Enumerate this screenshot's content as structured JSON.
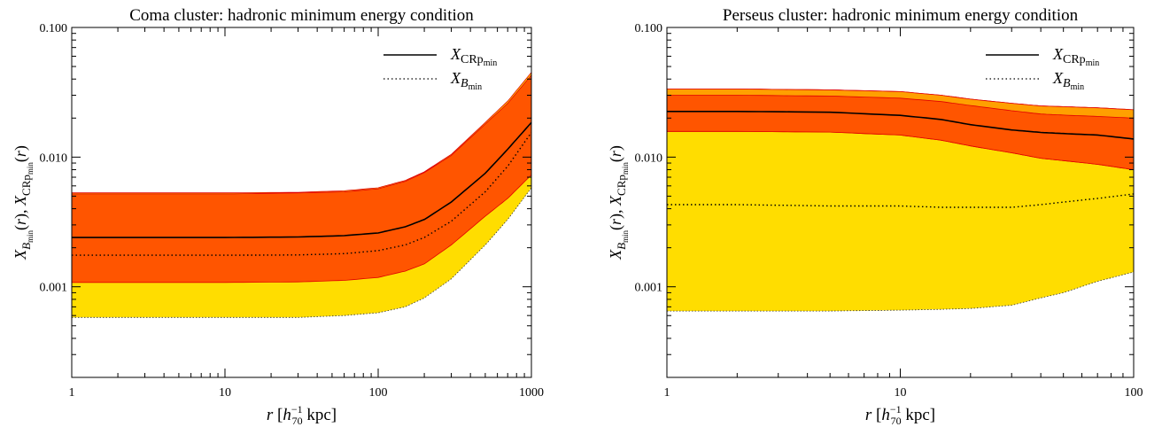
{
  "chart_data": [
    {
      "type": "area",
      "title": "Coma cluster: hadronic minimum energy condition",
      "xlabel": {
        "pre": "r [h",
        "sub": "70",
        "sup": "−1",
        "post": " kpc]"
      },
      "ylabel": "X_Bmin(r), X_CRpmin(r)",
      "xscale": "log",
      "yscale": "log",
      "xlim": [
        1,
        1000
      ],
      "ylim": [
        0.0002,
        0.1
      ],
      "x_ticks": [
        "1",
        "10",
        "100",
        "1000"
      ],
      "y_ticks": [
        "0.001",
        "0.010",
        "0.100"
      ],
      "legend": {
        "position": "top-right",
        "entries": [
          {
            "base": "X",
            "sub": "CRp",
            "subsub": "min",
            "style": "solid"
          },
          {
            "base": "X",
            "sub": "B",
            "subsub": "min",
            "style": "dotted"
          }
        ]
      },
      "colors": {
        "outer_band": "#ffdd00",
        "inner_band": "#ff5500",
        "band_edge": "#e00000",
        "line": "#000000"
      },
      "x": [
        1,
        3,
        10,
        30,
        60,
        100,
        150,
        200,
        300,
        500,
        700,
        1000
      ],
      "series": [
        {
          "role": "line",
          "style": "solid",
          "values": [
            0.0024,
            0.0024,
            0.0024,
            0.00242,
            0.00248,
            0.0026,
            0.0029,
            0.0033,
            0.0045,
            0.0075,
            0.0115,
            0.0185
          ]
        },
        {
          "role": "line",
          "style": "dotted",
          "values": [
            0.00175,
            0.00175,
            0.00175,
            0.00176,
            0.0018,
            0.0019,
            0.0021,
            0.0024,
            0.0032,
            0.0054,
            0.0085,
            0.0155
          ]
        },
        {
          "role": "band",
          "layer": "outer",
          "lower": [
            0.00058,
            0.00058,
            0.00058,
            0.00058,
            0.0006,
            0.00063,
            0.0007,
            0.00082,
            0.00115,
            0.0021,
            0.0033,
            0.0058
          ],
          "upper": [
            0.0053,
            0.0053,
            0.0053,
            0.00535,
            0.0055,
            0.0058,
            0.0066,
            0.0077,
            0.0105,
            0.0185,
            0.027,
            0.045
          ]
        },
        {
          "role": "band",
          "layer": "inner",
          "lower": [
            0.00108,
            0.00108,
            0.00108,
            0.00109,
            0.00112,
            0.00118,
            0.00132,
            0.0015,
            0.0021,
            0.0035,
            0.0048,
            0.0073
          ],
          "upper": [
            0.0052,
            0.0052,
            0.0052,
            0.0053,
            0.0054,
            0.0057,
            0.0065,
            0.0076,
            0.0103,
            0.018,
            0.026,
            0.043
          ]
        }
      ]
    },
    {
      "type": "area",
      "title": "Perseus cluster: hadronic minimum energy condition",
      "xlabel": {
        "pre": "r [h",
        "sub": "70",
        "sup": "−1",
        "post": " kpc]"
      },
      "ylabel": "X_Bmin(r), X_CRpmin(r)",
      "xscale": "log",
      "yscale": "log",
      "xlim": [
        1,
        100
      ],
      "ylim": [
        0.0002,
        0.1
      ],
      "x_ticks": [
        "1",
        "10",
        "100"
      ],
      "y_ticks": [
        "0.001",
        "0.010",
        "0.100"
      ],
      "legend": {
        "position": "top-right",
        "entries": [
          {
            "base": "X",
            "sub": "CRp",
            "subsub": "min",
            "style": "solid"
          },
          {
            "base": "X",
            "sub": "B",
            "subsub": "min",
            "style": "dotted"
          }
        ]
      },
      "colors": {
        "outer_band": "#ffdd00",
        "mid_band": "#ffa000",
        "inner_band": "#ff5500",
        "band_edge": "#e00000",
        "line": "#000000"
      },
      "x": [
        1,
        2,
        5,
        10,
        15,
        20,
        30,
        40,
        50,
        70,
        100
      ],
      "series": [
        {
          "role": "line",
          "style": "solid",
          "values": [
            0.0225,
            0.0225,
            0.0222,
            0.021,
            0.0195,
            0.0178,
            0.0162,
            0.0155,
            0.0152,
            0.0148,
            0.0138
          ]
        },
        {
          "role": "line",
          "style": "dotted",
          "values": [
            0.0043,
            0.0043,
            0.0042,
            0.0042,
            0.0041,
            0.0041,
            0.0041,
            0.0043,
            0.0045,
            0.0048,
            0.0052
          ]
        },
        {
          "role": "band",
          "layer": "outer",
          "lower": [
            0.00065,
            0.00065,
            0.00065,
            0.00066,
            0.00067,
            0.00068,
            0.00072,
            0.00082,
            0.0009,
            0.0011,
            0.0013
          ],
          "upper": [
            0.0335,
            0.0335,
            0.033,
            0.032,
            0.03,
            0.028,
            0.026,
            0.0248,
            0.0245,
            0.024,
            0.0232
          ]
        },
        {
          "role": "band",
          "layer": "mid",
          "lower": [
            0.0158,
            0.0158,
            0.0156,
            0.0148,
            0.0135,
            0.0122,
            0.0108,
            0.0098,
            0.0094,
            0.0088,
            0.008
          ],
          "upper": [
            0.0335,
            0.0335,
            0.033,
            0.032,
            0.03,
            0.028,
            0.026,
            0.0248,
            0.0245,
            0.024,
            0.0232
          ]
        },
        {
          "role": "band",
          "layer": "inner",
          "lower": [
            0.0158,
            0.0158,
            0.0156,
            0.0148,
            0.0135,
            0.0122,
            0.0108,
            0.0098,
            0.0094,
            0.0088,
            0.008
          ],
          "upper": [
            0.03,
            0.03,
            0.0296,
            0.0285,
            0.0268,
            0.025,
            0.0228,
            0.0215,
            0.0211,
            0.0206,
            0.02
          ]
        }
      ]
    }
  ]
}
